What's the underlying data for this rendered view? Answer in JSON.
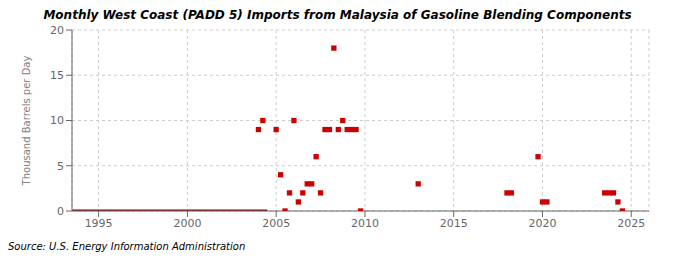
{
  "chart_data": {
    "type": "scatter",
    "title": "Monthly West Coast (PADD 5) Imports from Malaysia of Gasoline Blending Components",
    "ylabel": "Thousand Barrels per Day",
    "annotations": [
      "Source: U.S. Energy Information Administration"
    ],
    "xlim": [
      1993.5,
      2026
    ],
    "xticks": [
      1995,
      2000,
      2005,
      2010,
      2015,
      2020,
      2025
    ],
    "ylim": [
      0,
      20
    ],
    "yticks": [
      0,
      5,
      10,
      15,
      20
    ],
    "grid": true,
    "series": [
      {
        "type": "line",
        "color": "#8b0000",
        "line_style": "solid",
        "x": [
          1993.5,
          2004.5
        ],
        "values": [
          0.0,
          0.0
        ]
      },
      {
        "type": "scatter",
        "color": "#cc0000",
        "marker": "square",
        "x": [
          2004.0,
          2004.25,
          2005.0,
          2005.25,
          2005.75,
          2006.0,
          2006.25,
          2006.5,
          2006.75,
          2007.0,
          2007.25,
          2007.5,
          2007.75,
          2008.0,
          2008.25,
          2008.5,
          2008.75,
          2009.0,
          2009.25,
          2009.5,
          2013.0,
          2018.0,
          2018.25,
          2019.75,
          2020.0,
          2020.25,
          2023.5,
          2023.75,
          2024.0,
          2024.25,
          2005.5,
          2009.75,
          2024.5
        ],
        "values": [
          9.0,
          10.0,
          9.0,
          4.0,
          2.0,
          10.0,
          1.0,
          2.0,
          3.0,
          3.0,
          6.0,
          2.0,
          9.0,
          9.0,
          18.0,
          9.0,
          10.0,
          9.0,
          9.0,
          9.0,
          3.0,
          2.0,
          2.0,
          6.0,
          1.0,
          1.0,
          2.0,
          2.0,
          2.0,
          1.0,
          0.0,
          0.0,
          0.0
        ]
      }
    ]
  }
}
